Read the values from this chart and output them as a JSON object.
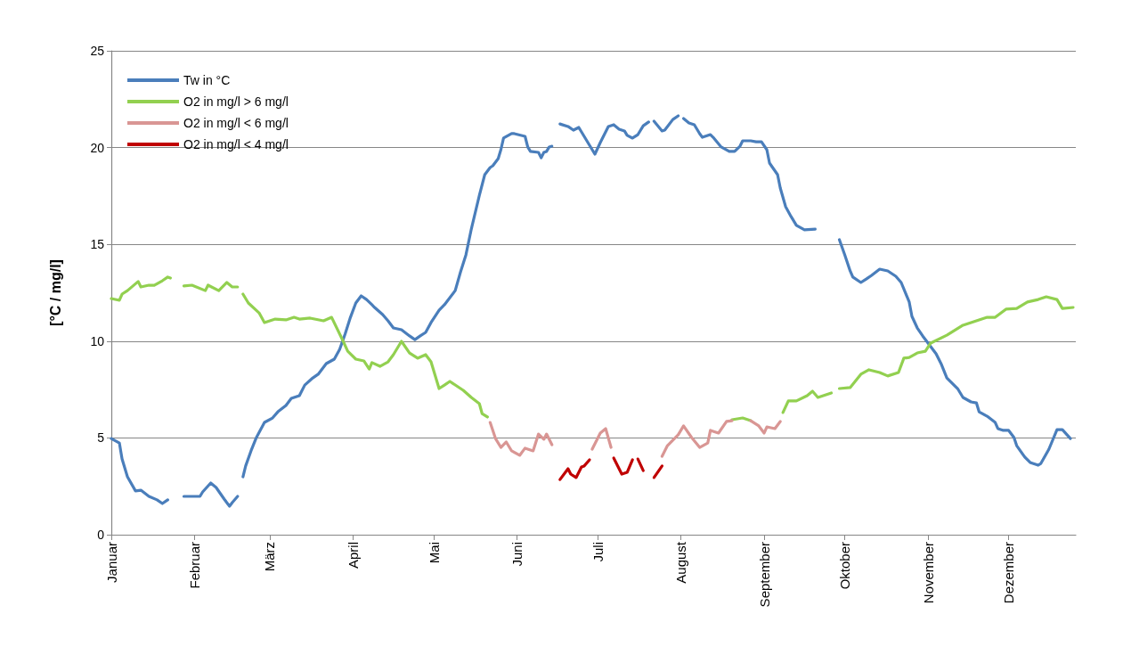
{
  "chart_data": {
    "type": "line",
    "ylabel": "[°C / mg/l]",
    "xlim": [
      "--01-01",
      "--12-26"
    ],
    "ylim": [
      0,
      25
    ],
    "yticks": [
      0,
      5,
      10,
      15,
      20,
      25
    ],
    "xticks": [
      {
        "value": "--01-01",
        "label": "Januar"
      },
      {
        "value": "--02-01",
        "label": "Februar"
      },
      {
        "value": "--03-01",
        "label": "März"
      },
      {
        "value": "--04-01",
        "label": "April"
      },
      {
        "value": "--05-01",
        "label": "Mai"
      },
      {
        "value": "--06-01",
        "label": "Juni"
      },
      {
        "value": "--07-01",
        "label": "Juli"
      },
      {
        "value": "--08-01",
        "label": "August"
      },
      {
        "value": "--09-01",
        "label": "September"
      },
      {
        "value": "--10-01",
        "label": "Oktober"
      },
      {
        "value": "--11-01",
        "label": "November"
      },
      {
        "value": "--12-01",
        "label": "Dezember"
      }
    ],
    "grid": "y",
    "legend": "top left",
    "marker": "none",
    "line_style": "solid",
    "series": [
      {
        "name": "Tw in °C",
        "color": "#4a7ebb",
        "x": [
          "--01-01",
          "--01-04",
          "--01-05",
          "--01-07",
          "--01-10",
          "--01-12",
          "--01-15",
          "--01-18",
          "--01-20",
          "--01-22",
          "--01-25",
          "--01-28",
          "--02-03",
          "--02-04",
          "--02-07",
          "--02-09",
          "--02-12",
          "--02-14",
          "--02-15",
          "--02-17",
          "--02-18",
          "--02-19",
          "--02-20",
          "--02-22",
          "--02-24",
          "--02-27",
          "--03-02",
          "--03-04",
          "--03-07",
          "--03-09",
          "--03-12",
          "--03-14",
          "--03-17",
          "--03-19",
          "--03-22",
          "--03-25",
          "--03-27",
          "--03-29",
          "--03-31",
          "--04-02",
          "--04-04",
          "--04-06",
          "--04-08",
          "--04-09",
          "--04-12",
          "--04-14",
          "--04-16",
          "--04-19",
          "--04-22",
          "--04-24",
          "--04-26",
          "--04-28",
          "--04-30",
          "--05-03",
          "--05-05",
          "--05-09",
          "--05-11",
          "--05-13",
          "--05-15",
          "--05-18",
          "--05-20",
          "--05-22",
          "--05-23",
          "--05-25",
          "--05-26",
          "--05-27",
          "--05-30",
          "--05-31",
          "--06-04",
          "--06-05",
          "--06-06",
          "--06-09",
          "--06-10",
          "--06-11",
          "--06-12",
          "--06-13",
          "--06-14",
          "--06-15",
          "--06-17",
          "--06-20",
          "--06-22",
          "--06-24",
          "--06-27",
          "--06-30",
          "--07-02",
          "--07-05",
          "--07-07",
          "--07-09",
          "--07-11",
          "--07-12",
          "--07-14",
          "--07-16",
          "--07-18",
          "--07-20",
          "--07-21",
          "--07-22",
          "--07-25",
          "--07-26",
          "--07-29",
          "--07-31",
          "--08-01",
          "--08-02",
          "--08-04",
          "--08-06",
          "--08-08",
          "--08-09",
          "--08-12",
          "--08-13",
          "--08-16",
          "--08-19",
          "--08-21",
          "--08-23",
          "--08-24",
          "--08-27",
          "--08-29",
          "--08-31",
          "--09-02",
          "--09-03",
          "--09-06",
          "--09-07",
          "--09-09",
          "--09-11",
          "--09-13",
          "--09-16",
          "--09-20",
          "--09-25",
          "--09-29",
          "--10-01",
          "--10-03",
          "--10-04",
          "--10-07",
          "--10-09",
          "--10-11",
          "--10-14",
          "--10-17",
          "--10-20",
          "--10-22",
          "--10-25",
          "--10-26",
          "--10-28",
          "--10-30",
          "--11-01",
          "--11-04",
          "--11-06",
          "--11-08",
          "--11-12",
          "--11-14",
          "--11-17",
          "--11-19",
          "--11-20",
          "--11-23",
          "--11-26",
          "--11-27",
          "--11-29",
          "--12-01",
          "--12-03",
          "--12-04",
          "--12-07",
          "--12-09",
          "--12-12",
          "--12-13",
          "--12-16",
          "--12-19",
          "--12-21",
          "--12-24"
        ],
        "values": [
          4.97,
          4.74,
          3.91,
          2.99,
          2.26,
          2.3,
          1.98,
          1.8,
          1.61,
          1.8,
          null,
          1.98,
          1.98,
          2.21,
          2.67,
          2.44,
          1.84,
          1.47,
          1.66,
          1.98,
          null,
          2.99,
          3.55,
          4.33,
          5.02,
          5.8,
          6.03,
          6.35,
          6.68,
          7.04,
          7.18,
          7.73,
          8.1,
          8.29,
          8.84,
          9.07,
          9.58,
          10.36,
          11.23,
          11.97,
          12.34,
          12.15,
          11.88,
          11.74,
          11.37,
          11.05,
          10.68,
          10.59,
          10.27,
          10.08,
          10.27,
          10.45,
          10.96,
          11.6,
          11.88,
          12.61,
          13.58,
          14.46,
          15.79,
          17.54,
          18.6,
          18.97,
          19.06,
          19.43,
          19.89,
          20.49,
          20.72,
          20.72,
          20.58,
          20.03,
          19.8,
          19.75,
          19.47,
          19.75,
          19.8,
          20.03,
          20.07,
          null,
          21.22,
          21.09,
          20.9,
          21.04,
          20.35,
          19.66,
          20.26,
          21.09,
          21.18,
          20.95,
          20.86,
          20.63,
          20.49,
          20.67,
          21.13,
          21.32,
          null,
          21.36,
          20.86,
          20.9,
          21.45,
          21.64,
          null,
          21.5,
          21.27,
          21.18,
          20.72,
          20.53,
          20.67,
          20.53,
          20.03,
          19.8,
          19.8,
          20.07,
          20.35,
          20.35,
          20.3,
          20.3,
          19.89,
          19.2,
          18.6,
          17.91,
          16.94,
          16.44,
          15.98,
          15.75,
          15.79,
          null,
          15.24,
          14.46,
          13.63,
          13.31,
          13.03,
          13.21,
          13.4,
          13.72,
          13.63,
          13.35,
          13.03,
          12.02,
          11.28,
          10.68,
          10.27,
          9.9,
          9.35,
          8.79,
          8.1,
          7.55,
          7.09,
          6.86,
          6.81,
          6.35,
          6.12,
          5.8,
          5.48,
          5.39,
          5.39,
          5.02,
          4.6,
          4.01,
          3.73,
          3.59,
          3.68,
          4.42,
          5.43,
          5.43,
          4.97
        ]
      },
      {
        "name": "O2 in mg/l > 6 mg/l",
        "color": "#92d050",
        "x": [
          "--01-01",
          "--01-04",
          "--01-05",
          "--01-07",
          "--01-11",
          "--01-12",
          "--01-15",
          "--01-17",
          "--01-20",
          "--01-22",
          "--01-23",
          "--01-26",
          "--01-28",
          "--01-31",
          "--02-05",
          "--02-06",
          "--02-10",
          "--02-13",
          "--02-15",
          "--02-17",
          "--02-18",
          "--02-19",
          "--02-21",
          "--02-25",
          "--02-27",
          "--03-03",
          "--03-07",
          "--03-10",
          "--03-12",
          "--03-16",
          "--03-21",
          "--03-24",
          "--03-28",
          "--03-30",
          "--04-02",
          "--04-05",
          "--04-07",
          "--04-08",
          "--04-11",
          "--04-14",
          "--04-16",
          "--04-19",
          "--04-22",
          "--04-25",
          "--04-28",
          "--04-30",
          "--05-03",
          "--05-05",
          "--05-07",
          "--05-12",
          "--05-15",
          "--05-18",
          "--05-19",
          "--05-21",
          "--07-01",
          "--08-20",
          "--08-24",
          "--08-27",
          "--08-29",
          "--09-08",
          "--09-10",
          "--09-13",
          "--09-17",
          "--09-19",
          "--09-21",
          "--09-26",
          "--09-27",
          "--09-29",
          "--10-03",
          "--10-07",
          "--10-10",
          "--10-14",
          "--10-17",
          "--10-21",
          "--10-23",
          "--10-25",
          "--10-28",
          "--10-31",
          "--11-02",
          "--11-08",
          "--11-14",
          "--11-20",
          "--11-23",
          "--11-26",
          "--11-30",
          "--12-04",
          "--12-08",
          "--12-12",
          "--12-15",
          "--12-19",
          "--12-21",
          "--12-25"
        ],
        "values": [
          12.2,
          12.11,
          12.43,
          12.61,
          13.08,
          12.8,
          12.89,
          12.89,
          13.12,
          13.31,
          13.26,
          null,
          12.85,
          12.89,
          12.61,
          12.89,
          12.61,
          13.03,
          12.8,
          12.8,
          null,
          12.43,
          11.97,
          11.46,
          10.96,
          11.14,
          11.1,
          11.23,
          11.14,
          11.19,
          11.05,
          11.23,
          10.08,
          9.48,
          9.07,
          8.98,
          8.56,
          8.89,
          8.7,
          8.93,
          9.3,
          9.99,
          9.39,
          9.12,
          9.3,
          8.93,
          7.55,
          7.73,
          7.92,
          7.46,
          7.09,
          6.77,
          6.26,
          6.08,
          null,
          5.94,
          6.03,
          5.89,
          null,
          6.31,
          6.91,
          6.91,
          7.18,
          7.41,
          7.09,
          7.32,
          null,
          7.55,
          7.6,
          8.29,
          8.52,
          8.38,
          8.2,
          8.38,
          9.12,
          9.16,
          9.39,
          9.48,
          9.9,
          10.31,
          10.82,
          11.1,
          11.23,
          11.23,
          11.65,
          11.69,
          12.02,
          12.15,
          12.29,
          12.15,
          11.69,
          11.74
        ]
      },
      {
        "name": "O2 in mg/l < 6 mg/l",
        "color": "#d99694",
        "x": [
          "--05-22",
          "--05-24",
          "--05-26",
          "--05-28",
          "--05-30",
          "--06-02",
          "--06-04",
          "--06-07",
          "--06-09",
          "--06-11",
          "--06-12",
          "--06-14",
          "--06-19",
          "--06-29",
          "--07-02",
          "--07-04",
          "--07-06",
          "--07-13",
          "--07-25",
          "--07-27",
          "--07-31",
          "--08-02",
          "--08-05",
          "--08-08",
          "--08-11",
          "--08-12",
          "--08-15",
          "--08-18",
          "--08-20",
          "--08-23",
          "--08-27",
          "--08-30",
          "--09-01",
          "--09-02",
          "--09-05",
          "--09-07"
        ],
        "values": [
          5.8,
          4.97,
          4.51,
          4.79,
          4.33,
          4.1,
          4.47,
          4.33,
          5.2,
          4.93,
          5.2,
          4.65,
          null,
          4.42,
          5.25,
          5.48,
          4.51,
          null,
          4.05,
          4.6,
          5.16,
          5.62,
          5.02,
          4.51,
          4.74,
          5.39,
          5.25,
          5.85,
          5.89,
          null,
          5.89,
          5.62,
          5.25,
          5.57,
          5.48,
          5.85
        ]
      },
      {
        "name": "O2 in mg/l < 4 mg/l",
        "color": "#c00000",
        "x": [
          "--06-17",
          "--06-20",
          "--06-21",
          "--06-23",
          "--06-25",
          "--06-26",
          "--06-28",
          "--07-01",
          "--07-07",
          "--07-10",
          "--07-12",
          "--07-14",
          "--07-15",
          "--07-16",
          "--07-18",
          "--07-20",
          "--07-22",
          "--07-25"
        ],
        "values": [
          2.85,
          3.41,
          3.13,
          2.95,
          3.5,
          3.55,
          3.87,
          null,
          3.96,
          3.13,
          3.22,
          3.87,
          null,
          3.91,
          3.31,
          null,
          2.95,
          3.55
        ]
      }
    ]
  }
}
